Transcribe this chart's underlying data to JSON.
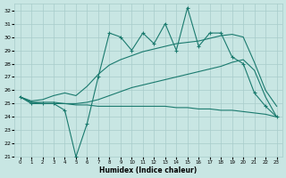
{
  "xlabel": "Humidex (Indice chaleur)",
  "background_color": "#c8e6e3",
  "grid_color": "#a8ccca",
  "line_color": "#1a7a6e",
  "xlim": [
    -0.5,
    23.5
  ],
  "ylim": [
    21,
    32.5
  ],
  "yticks": [
    21,
    22,
    23,
    24,
    25,
    26,
    27,
    28,
    29,
    30,
    31,
    32
  ],
  "xticks": [
    0,
    1,
    2,
    3,
    4,
    5,
    6,
    7,
    8,
    9,
    10,
    11,
    12,
    13,
    14,
    15,
    16,
    17,
    18,
    19,
    20,
    21,
    22,
    23
  ],
  "line_jagged": [
    25.5,
    25.0,
    25.0,
    25.0,
    24.5,
    21.0,
    23.5,
    27.0,
    30.3,
    30.0,
    29.0,
    30.3,
    29.5,
    31.0,
    29.0,
    32.2,
    29.3,
    30.3,
    30.3,
    28.5,
    28.0,
    25.8,
    24.8,
    24.0
  ],
  "line_upper": [
    25.5,
    25.2,
    25.3,
    25.6,
    25.8,
    25.6,
    26.3,
    27.2,
    27.9,
    28.3,
    28.6,
    28.9,
    29.1,
    29.3,
    29.5,
    29.6,
    29.7,
    29.9,
    30.1,
    30.2,
    30.0,
    28.1,
    26.0,
    24.8
  ],
  "line_middle": [
    25.5,
    25.1,
    25.1,
    25.1,
    25.0,
    25.0,
    25.1,
    25.3,
    25.6,
    25.9,
    26.2,
    26.4,
    26.6,
    26.8,
    27.0,
    27.2,
    27.4,
    27.6,
    27.8,
    28.1,
    28.3,
    27.5,
    25.5,
    24.0
  ],
  "line_lower": [
    25.5,
    25.1,
    25.0,
    25.0,
    25.0,
    24.9,
    24.9,
    24.8,
    24.8,
    24.8,
    24.8,
    24.8,
    24.8,
    24.8,
    24.7,
    24.7,
    24.6,
    24.6,
    24.5,
    24.5,
    24.4,
    24.3,
    24.2,
    24.0
  ]
}
